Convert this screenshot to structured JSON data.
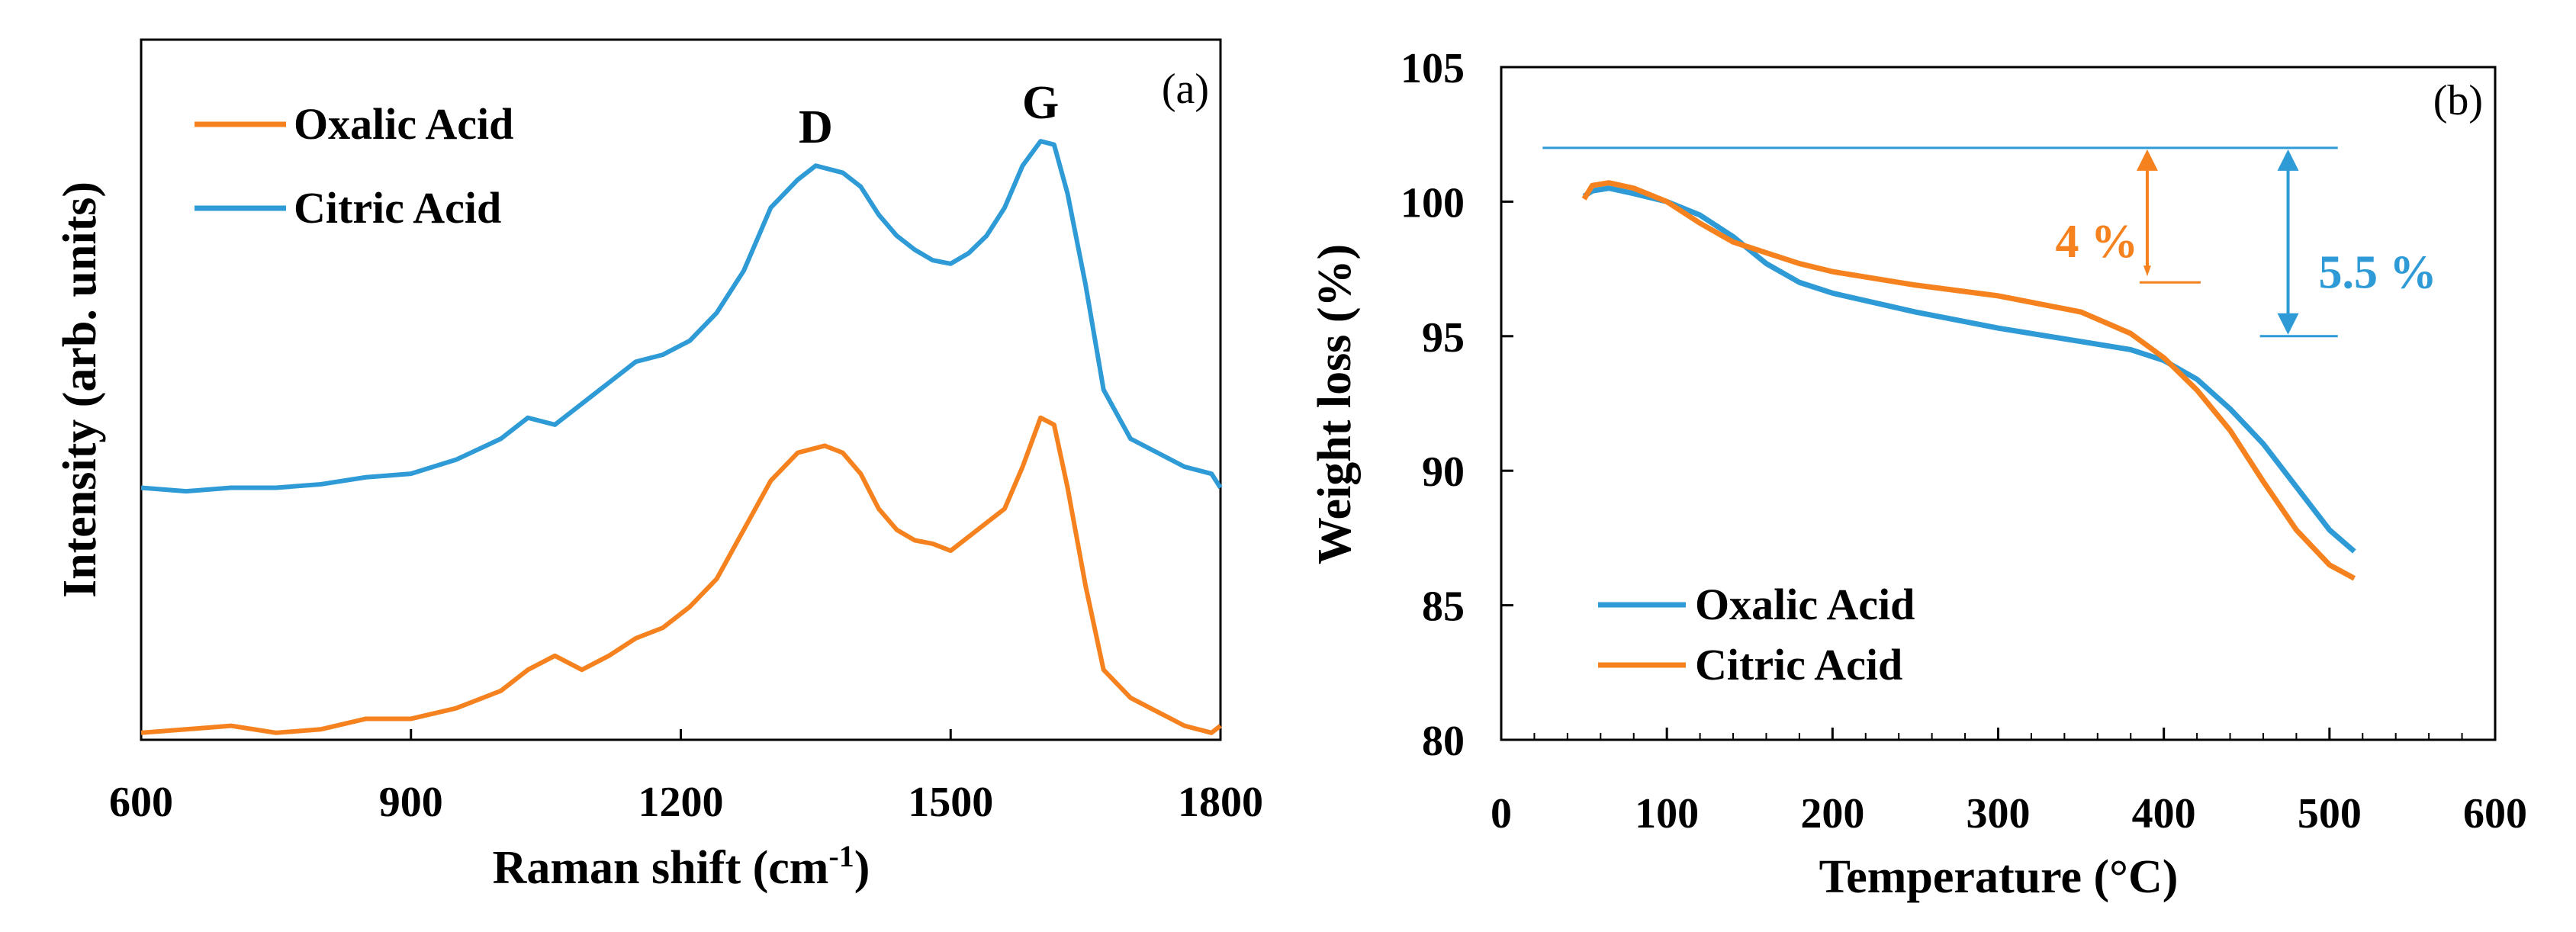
{
  "chart_data": [
    {
      "panel": "(a)",
      "type": "line",
      "title": "",
      "xlabel": "Raman shift (cm",
      "xlabel_sup": "-1",
      "xlabel_end": ")",
      "ylabel": "Intensity (arb. units)",
      "xlim": [
        600,
        1800
      ],
      "ylim": [
        0,
        1
      ],
      "xticks": [
        600,
        900,
        1200,
        1500,
        1800
      ],
      "legend": {
        "position": "top-left",
        "entries": [
          {
            "label": "Oxalic Acid",
            "color": "#F5821F"
          },
          {
            "label": "Citric Acid",
            "color": "#2E9AD6"
          }
        ]
      },
      "peak_labels": [
        {
          "label": "D",
          "x": 1350
        },
        {
          "label": "G",
          "x": 1600
        }
      ],
      "series": [
        {
          "name": "Oxalic Acid",
          "color": "#F5821F",
          "x": [
            600,
            650,
            700,
            750,
            800,
            850,
            900,
            950,
            1000,
            1030,
            1060,
            1090,
            1120,
            1150,
            1180,
            1210,
            1240,
            1270,
            1300,
            1330,
            1360,
            1380,
            1400,
            1420,
            1440,
            1460,
            1480,
            1500,
            1520,
            1540,
            1560,
            1580,
            1600,
            1615,
            1630,
            1650,
            1670,
            1700,
            1730,
            1760,
            1790,
            1800
          ],
          "y": [
            0.01,
            0.015,
            0.02,
            0.01,
            0.015,
            0.03,
            0.03,
            0.045,
            0.07,
            0.1,
            0.12,
            0.1,
            0.12,
            0.145,
            0.16,
            0.19,
            0.23,
            0.3,
            0.37,
            0.41,
            0.42,
            0.41,
            0.38,
            0.33,
            0.3,
            0.285,
            0.28,
            0.27,
            0.29,
            0.31,
            0.33,
            0.39,
            0.46,
            0.45,
            0.36,
            0.22,
            0.1,
            0.06,
            0.04,
            0.02,
            0.01,
            0.02
          ]
        },
        {
          "name": "Citric Acid",
          "color": "#2E9AD6",
          "x": [
            600,
            650,
            700,
            750,
            800,
            850,
            900,
            950,
            1000,
            1030,
            1060,
            1090,
            1120,
            1150,
            1180,
            1210,
            1240,
            1270,
            1300,
            1330,
            1350,
            1380,
            1400,
            1420,
            1440,
            1460,
            1480,
            1500,
            1520,
            1540,
            1560,
            1580,
            1600,
            1615,
            1630,
            1650,
            1670,
            1700,
            1730,
            1760,
            1790,
            1800
          ],
          "y": [
            0.36,
            0.355,
            0.36,
            0.36,
            0.365,
            0.375,
            0.38,
            0.4,
            0.43,
            0.46,
            0.45,
            0.48,
            0.51,
            0.54,
            0.55,
            0.57,
            0.61,
            0.67,
            0.76,
            0.8,
            0.82,
            0.81,
            0.79,
            0.75,
            0.72,
            0.7,
            0.685,
            0.68,
            0.695,
            0.72,
            0.76,
            0.82,
            0.855,
            0.85,
            0.78,
            0.65,
            0.5,
            0.43,
            0.41,
            0.39,
            0.38,
            0.36
          ]
        }
      ]
    },
    {
      "panel": "(b)",
      "type": "line",
      "title": "",
      "xlabel": "Temperature (°C)",
      "ylabel": "Weight loss (%)",
      "xlim": [
        0,
        600
      ],
      "ylim": [
        80,
        105
      ],
      "xticks": [
        0,
        100,
        200,
        300,
        400,
        500,
        600
      ],
      "yticks": [
        80,
        85,
        90,
        95,
        100,
        105
      ],
      "legend": {
        "position": "bottom-left",
        "entries": [
          {
            "label": "Oxalic Acid",
            "color": "#2E9AD6"
          },
          {
            "label": "Citric Acid",
            "color": "#F5821F"
          }
        ]
      },
      "series": [
        {
          "name": "Oxalic Acid",
          "color": "#2E9AD6",
          "x": [
            50,
            55,
            65,
            80,
            100,
            120,
            140,
            160,
            180,
            200,
            250,
            300,
            350,
            380,
            400,
            420,
            440,
            460,
            480,
            500,
            515
          ],
          "y": [
            100.2,
            100.4,
            100.5,
            100.3,
            100.0,
            99.5,
            98.7,
            97.7,
            97.0,
            96.6,
            95.9,
            95.3,
            94.8,
            94.5,
            94.1,
            93.4,
            92.3,
            91.0,
            89.4,
            87.8,
            87.0
          ]
        },
        {
          "name": "Citric Acid",
          "color": "#F5821F",
          "x": [
            50,
            55,
            65,
            80,
            100,
            120,
            140,
            160,
            180,
            200,
            250,
            300,
            350,
            380,
            400,
            420,
            440,
            460,
            480,
            500,
            515
          ],
          "y": [
            100.1,
            100.6,
            100.7,
            100.5,
            100.0,
            99.2,
            98.5,
            98.1,
            97.7,
            97.4,
            96.9,
            96.5,
            95.9,
            95.1,
            94.2,
            93.0,
            91.5,
            89.6,
            87.8,
            86.5,
            86.0
          ]
        }
      ],
      "annotations": {
        "reference_value": 102,
        "orange": {
          "text": "4 %",
          "color": "#F5821F",
          "x": 390,
          "from": 102,
          "to": 97
        },
        "blue": {
          "text": "5.5 %",
          "color": "#2E9AD6",
          "x": 475,
          "from": 102,
          "to": 95
        }
      }
    }
  ]
}
